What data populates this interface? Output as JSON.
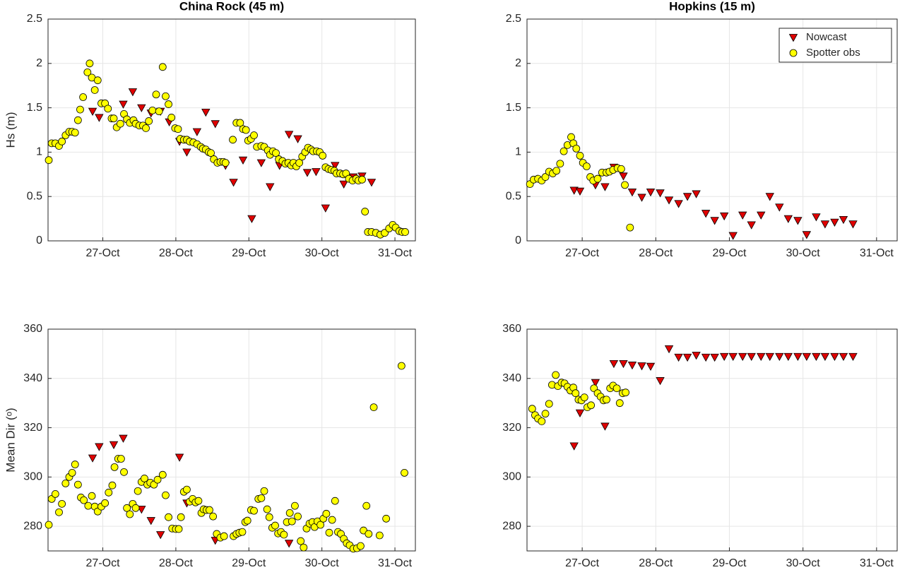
{
  "chart_data": [
    {
      "type": "scatter",
      "title": "China Rock (45 m)",
      "ylabel": "Hs (m)",
      "grid": true,
      "legend": false,
      "xlim": [
        26.25,
        31.28
      ],
      "ylim": [
        0,
        2.5
      ],
      "xticks": [
        {
          "value": 27,
          "label": "27-Oct"
        },
        {
          "value": 28,
          "label": "28-Oct"
        },
        {
          "value": 29,
          "label": "29-Oct"
        },
        {
          "value": 30,
          "label": "30-Oct"
        },
        {
          "value": 31,
          "label": "31-Oct"
        }
      ],
      "yticks": [
        0,
        0.5,
        1,
        1.5,
        2,
        2.5
      ],
      "series": [
        {
          "name": "Nowcast",
          "color": "#e00000",
          "marker": "triangle-down",
          "x": [
            26.86,
            26.95,
            27.28,
            27.41,
            27.53,
            27.66,
            27.79,
            27.91,
            28.05,
            28.15,
            28.29,
            28.41,
            28.54,
            28.68,
            28.79,
            28.92,
            29.04,
            29.17,
            29.29,
            29.42,
            29.55,
            29.67,
            29.8,
            29.92,
            30.05,
            30.18,
            30.3,
            30.43,
            30.55,
            30.68
          ],
          "values": [
            1.46,
            1.39,
            1.54,
            1.68,
            1.5,
            1.44,
            1.46,
            1.34,
            1.12,
            1.0,
            1.23,
            1.45,
            1.32,
            0.85,
            0.66,
            0.91,
            0.25,
            0.88,
            0.61,
            0.85,
            1.2,
            1.15,
            0.77,
            0.78,
            0.37,
            0.85,
            0.64,
            0.72,
            0.73,
            0.66
          ]
        },
        {
          "name": "Spotter obs",
          "color": "#ffff00",
          "marker": "circle",
          "x": [
            26.26,
            26.3,
            26.35,
            26.4,
            26.44,
            26.49,
            26.54,
            26.58,
            26.62,
            26.66,
            26.69,
            26.73,
            26.79,
            26.82,
            26.85,
            26.89,
            26.93,
            26.98,
            27.03,
            27.07,
            27.12,
            27.15,
            27.19,
            27.24,
            27.29,
            27.33,
            27.37,
            27.42,
            27.45,
            27.5,
            27.55,
            27.59,
            27.63,
            27.68,
            27.73,
            27.77,
            27.82,
            27.86,
            27.9,
            27.94,
            27.99,
            28.03,
            28.06,
            28.11,
            28.15,
            28.19,
            28.24,
            28.29,
            28.34,
            28.37,
            28.41,
            28.45,
            28.48,
            28.52,
            28.57,
            28.61,
            28.65,
            28.68,
            28.78,
            28.83,
            28.88,
            28.92,
            28.96,
            28.99,
            29.03,
            29.07,
            29.11,
            29.17,
            29.21,
            29.26,
            29.29,
            29.33,
            29.37,
            29.41,
            29.46,
            29.5,
            29.54,
            29.58,
            29.61,
            29.65,
            29.69,
            29.73,
            29.77,
            29.81,
            29.85,
            29.88,
            29.93,
            29.97,
            30.01,
            30.05,
            30.09,
            30.13,
            30.17,
            30.2,
            30.25,
            30.29,
            30.33,
            30.37,
            30.42,
            30.47,
            30.5,
            30.55,
            30.59,
            30.63,
            30.68,
            30.74,
            30.8,
            30.86,
            30.92,
            30.97,
            31.01,
            31.06,
            31.1,
            31.14
          ],
          "values": [
            0.91,
            1.1,
            1.1,
            1.07,
            1.12,
            1.19,
            1.23,
            1.23,
            1.22,
            1.36,
            1.48,
            1.62,
            1.9,
            2.0,
            1.84,
            1.7,
            1.81,
            1.55,
            1.55,
            1.49,
            1.38,
            1.38,
            1.28,
            1.32,
            1.43,
            1.37,
            1.33,
            1.36,
            1.32,
            1.3,
            1.3,
            1.27,
            1.35,
            1.47,
            1.65,
            1.46,
            1.96,
            1.63,
            1.54,
            1.39,
            1.27,
            1.26,
            1.15,
            1.14,
            1.14,
            1.12,
            1.11,
            1.09,
            1.06,
            1.04,
            1.03,
            1.0,
            0.99,
            0.92,
            0.88,
            0.89,
            0.89,
            0.88,
            1.14,
            1.33,
            1.33,
            1.26,
            1.25,
            1.13,
            1.15,
            1.19,
            1.06,
            1.07,
            1.06,
            1.02,
            0.97,
            1.01,
            0.99,
            0.92,
            0.9,
            0.87,
            0.88,
            0.85,
            0.88,
            0.84,
            0.88,
            0.95,
            1.0,
            1.05,
            1.03,
            1.01,
            1.01,
            1.0,
            0.96,
            0.83,
            0.81,
            0.8,
            0.79,
            0.76,
            0.76,
            0.75,
            0.76,
            0.7,
            0.68,
            0.7,
            0.68,
            0.69,
            0.33,
            0.1,
            0.1,
            0.09,
            0.07,
            0.09,
            0.14,
            0.18,
            0.15,
            0.11,
            0.1,
            0.1
          ]
        }
      ]
    },
    {
      "type": "scatter",
      "title": "Hopkins (15 m)",
      "grid": true,
      "legend": true,
      "legend_loc": "upper right",
      "xlim": [
        26.25,
        31.28
      ],
      "ylim": [
        0,
        2.5
      ],
      "xticks": [
        {
          "value": 27,
          "label": "27-Oct"
        },
        {
          "value": 28,
          "label": "28-Oct"
        },
        {
          "value": 29,
          "label": "29-Oct"
        },
        {
          "value": 30,
          "label": "30-Oct"
        },
        {
          "value": 31,
          "label": "31-Oct"
        }
      ],
      "yticks": [
        0,
        0.5,
        1,
        1.5,
        2,
        2.5
      ],
      "series": [
        {
          "name": "Nowcast",
          "color": "#e00000",
          "marker": "triangle-down",
          "x": [
            26.89,
            26.97,
            27.18,
            27.31,
            27.43,
            27.56,
            27.68,
            27.81,
            27.93,
            28.06,
            28.18,
            28.31,
            28.43,
            28.55,
            28.68,
            28.8,
            28.93,
            29.05,
            29.18,
            29.3,
            29.43,
            29.55,
            29.68,
            29.8,
            29.93,
            30.05,
            30.18,
            30.3,
            30.43,
            30.55,
            30.68
          ],
          "values": [
            0.57,
            0.56,
            0.63,
            0.61,
            0.83,
            0.73,
            0.55,
            0.49,
            0.55,
            0.54,
            0.46,
            0.42,
            0.5,
            0.53,
            0.31,
            0.23,
            0.28,
            0.06,
            0.29,
            0.18,
            0.29,
            0.5,
            0.38,
            0.25,
            0.23,
            0.07,
            0.27,
            0.19,
            0.21,
            0.24,
            0.19
          ]
        },
        {
          "name": "Spotter obs",
          "color": "#ffff00",
          "marker": "circle",
          "x": [
            26.29,
            26.34,
            26.4,
            26.45,
            26.5,
            26.55,
            26.6,
            26.65,
            26.7,
            26.75,
            26.8,
            26.85,
            26.88,
            26.92,
            26.97,
            27.01,
            27.06,
            27.11,
            27.15,
            27.21,
            27.27,
            27.33,
            27.37,
            27.42,
            27.48,
            27.53,
            27.58,
            27.65
          ],
          "values": [
            0.64,
            0.69,
            0.7,
            0.68,
            0.72,
            0.78,
            0.76,
            0.79,
            0.87,
            1.01,
            1.08,
            1.17,
            1.1,
            1.04,
            0.96,
            0.88,
            0.84,
            0.72,
            0.68,
            0.7,
            0.77,
            0.77,
            0.78,
            0.8,
            0.82,
            0.81,
            0.63,
            0.15
          ]
        }
      ]
    },
    {
      "type": "scatter",
      "ylabel": "Mean Dir (ᵒ)",
      "grid": true,
      "legend": false,
      "xlim": [
        26.25,
        31.28
      ],
      "ylim": [
        270,
        360
      ],
      "xticks": [
        {
          "value": 27,
          "label": "27-Oct"
        },
        {
          "value": 28,
          "label": "28-Oct"
        },
        {
          "value": 29,
          "label": "29-Oct"
        },
        {
          "value": 30,
          "label": "30-Oct"
        },
        {
          "value": 31,
          "label": "31-Oct"
        }
      ],
      "yticks": [
        280,
        300,
        320,
        340,
        360
      ],
      "series": [
        {
          "name": "Nowcast",
          "color": "#e00000",
          "marker": "triangle-down",
          "x": [
            26.86,
            26.95,
            27.15,
            27.28,
            27.53,
            27.66,
            27.79,
            28.05,
            28.15,
            28.54,
            29.55
          ],
          "values": [
            307.7,
            312.3,
            313.1,
            315.7,
            286.9,
            282.3,
            276.6,
            308.0,
            289.4,
            274.3,
            273.1
          ]
        },
        {
          "name": "Spotter obs",
          "color": "#ffff00",
          "marker": "circle",
          "x": [
            26.26,
            26.3,
            26.35,
            26.4,
            26.44,
            26.49,
            26.54,
            26.58,
            26.62,
            26.66,
            26.7,
            26.74,
            26.8,
            26.85,
            26.89,
            26.93,
            26.98,
            27.03,
            27.08,
            27.13,
            27.16,
            27.21,
            27.25,
            27.29,
            27.33,
            27.37,
            27.41,
            27.45,
            27.48,
            27.53,
            27.57,
            27.61,
            27.65,
            27.7,
            27.75,
            27.82,
            27.86,
            27.9,
            27.95,
            28.0,
            28.04,
            28.07,
            28.11,
            28.15,
            28.19,
            28.23,
            28.27,
            28.31,
            28.35,
            28.38,
            28.42,
            28.46,
            28.51,
            28.56,
            28.61,
            28.66,
            28.79,
            28.83,
            28.87,
            28.91,
            28.95,
            28.98,
            29.03,
            29.07,
            29.13,
            29.17,
            29.21,
            29.25,
            29.28,
            29.32,
            29.36,
            29.4,
            29.44,
            29.48,
            29.52,
            29.56,
            29.59,
            29.63,
            29.67,
            29.71,
            29.75,
            29.79,
            29.83,
            29.87,
            29.9,
            29.94,
            29.98,
            30.02,
            30.06,
            30.1,
            30.14,
            30.18,
            30.22,
            30.26,
            30.3,
            30.34,
            30.38,
            30.43,
            30.48,
            30.53,
            30.57,
            30.61,
            30.64,
            30.71,
            30.79,
            30.88,
            31.09,
            31.13
          ],
          "values": [
            280.6,
            291.1,
            293.1,
            285.7,
            289.1,
            297.4,
            300.0,
            301.7,
            305.1,
            296.9,
            291.7,
            290.6,
            288.3,
            292.3,
            288.0,
            286.0,
            288.0,
            289.4,
            293.7,
            296.6,
            304.0,
            307.4,
            307.4,
            302.0,
            287.4,
            284.9,
            289.1,
            287.4,
            294.3,
            298.0,
            299.4,
            296.9,
            297.7,
            296.9,
            298.9,
            300.9,
            292.6,
            283.7,
            279.1,
            278.9,
            278.9,
            283.7,
            294.0,
            294.9,
            290.0,
            291.1,
            289.7,
            290.3,
            285.4,
            286.9,
            286.6,
            286.6,
            284.0,
            276.9,
            275.4,
            276.0,
            276.0,
            276.9,
            277.4,
            277.7,
            281.7,
            282.3,
            286.6,
            286.3,
            291.1,
            291.4,
            294.3,
            286.9,
            283.7,
            279.4,
            280.3,
            277.1,
            277.7,
            276.6,
            281.7,
            285.4,
            282.0,
            288.3,
            284.0,
            274.0,
            271.4,
            279.1,
            281.1,
            281.7,
            279.7,
            282.0,
            280.6,
            283.1,
            285.1,
            277.4,
            282.6,
            290.3,
            277.7,
            276.9,
            274.9,
            273.1,
            272.3,
            270.9,
            271.1,
            272.0,
            278.3,
            288.3,
            276.9,
            328.3,
            276.3,
            283.1,
            345.1,
            301.7
          ]
        }
      ]
    },
    {
      "type": "scatter",
      "grid": true,
      "legend": false,
      "xlim": [
        26.25,
        31.28
      ],
      "ylim": [
        270,
        360
      ],
      "xticks": [
        {
          "value": 27,
          "label": "27-Oct"
        },
        {
          "value": 28,
          "label": "28-Oct"
        },
        {
          "value": 29,
          "label": "29-Oct"
        },
        {
          "value": 30,
          "label": "30-Oct"
        },
        {
          "value": 31,
          "label": "31-Oct"
        }
      ],
      "yticks": [
        280,
        300,
        320,
        340,
        360
      ],
      "series": [
        {
          "name": "Nowcast",
          "color": "#e00000",
          "marker": "triangle-down",
          "x": [
            26.89,
            26.97,
            27.18,
            27.31,
            27.43,
            27.56,
            27.68,
            27.81,
            27.93,
            28.06,
            28.18,
            28.31,
            28.43,
            28.55,
            28.68,
            28.8,
            28.93,
            29.05,
            29.18,
            29.3,
            29.43,
            29.55,
            29.68,
            29.8,
            29.93,
            30.05,
            30.18,
            30.3,
            30.43,
            30.55,
            30.68
          ],
          "values": [
            312.6,
            326.0,
            338.3,
            320.6,
            346.0,
            346.0,
            345.4,
            345.1,
            344.9,
            339.1,
            352.0,
            348.6,
            348.6,
            349.4,
            348.6,
            348.6,
            348.9,
            348.9,
            348.9,
            348.9,
            348.9,
            348.9,
            348.9,
            348.9,
            348.9,
            348.9,
            348.9,
            348.9,
            348.9,
            348.9,
            348.9
          ]
        },
        {
          "name": "Spotter obs",
          "color": "#ffff00",
          "marker": "circle",
          "x": [
            26.32,
            26.36,
            26.4,
            26.45,
            26.5,
            26.55,
            26.59,
            26.64,
            26.67,
            26.72,
            26.76,
            26.8,
            26.84,
            26.88,
            26.91,
            26.95,
            26.99,
            27.03,
            27.07,
            27.12,
            27.16,
            27.21,
            27.25,
            27.29,
            27.33,
            27.38,
            27.42,
            27.47,
            27.51,
            27.55,
            27.59
          ],
          "values": [
            327.7,
            325.1,
            323.7,
            322.6,
            325.7,
            329.7,
            337.4,
            341.4,
            336.9,
            338.3,
            338.0,
            336.6,
            335.1,
            336.3,
            334.0,
            331.4,
            331.1,
            332.3,
            328.3,
            329.1,
            336.0,
            334.0,
            332.6,
            331.1,
            331.4,
            336.0,
            337.1,
            336.0,
            330.0,
            334.0,
            334.3
          ]
        }
      ]
    }
  ]
}
